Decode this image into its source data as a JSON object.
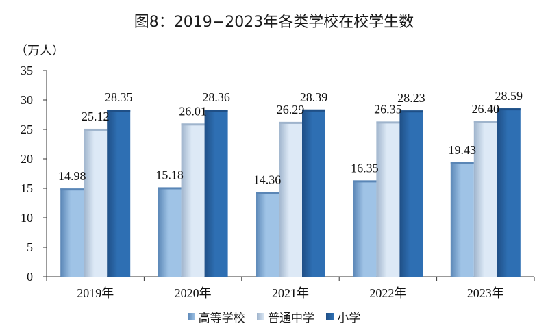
{
  "chart_data": {
    "type": "bar",
    "title": "图8：2019−2023年各类学校在校学生数",
    "ylabel": "（万人）",
    "categories": [
      "2019年",
      "2020年",
      "2021年",
      "2022年",
      "2023年"
    ],
    "ylim": [
      0,
      35
    ],
    "yticks": [
      0,
      5,
      10,
      15,
      20,
      25,
      30,
      35
    ],
    "series": [
      {
        "name": "高等学校",
        "values": [
          14.98,
          15.18,
          14.36,
          16.35,
          19.43
        ]
      },
      {
        "name": "普通中学",
        "values": [
          25.12,
          26.01,
          26.29,
          26.35,
          26.4
        ]
      },
      {
        "name": "小学",
        "values": [
          28.35,
          28.36,
          28.39,
          28.23,
          28.59
        ]
      }
    ],
    "value_labels": [
      [
        "14.98",
        "15.18",
        "14.36",
        "16.35",
        "19.43"
      ],
      [
        "25.12",
        "26.01",
        "26.29",
        "26.35",
        "26.40"
      ],
      [
        "28.35",
        "28.36",
        "28.39",
        "28.23",
        "28.59"
      ]
    ],
    "legend_position": "bottom",
    "grid": false,
    "colors": {
      "series": [
        "#9fc3e6",
        "#dde9f6",
        "#2e6fb3"
      ],
      "series_dark": [
        "#5a86b6",
        "#9fb4cc",
        "#1f4f86"
      ],
      "axis": "#333333"
    }
  }
}
